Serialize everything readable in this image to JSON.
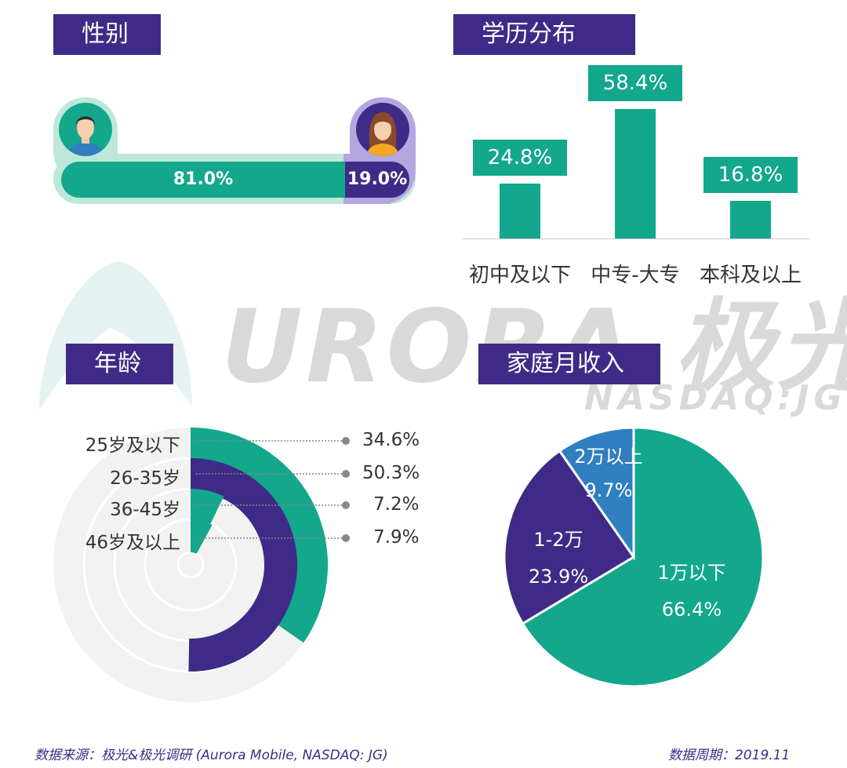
{
  "sections": {
    "gender_title": "性别",
    "education_title": "学历分布",
    "age_title": "年龄",
    "income_title": "家庭月收入"
  },
  "watermark": {
    "brand": "URORA 极光",
    "ticker": "NASDAQ:JG"
  },
  "gender": {
    "male_pct": "81.0%",
    "female_pct": "19.0%",
    "male_value": 81.0,
    "female_value": 19.0,
    "icons": [
      "male-avatar-icon",
      "female-avatar-icon"
    ]
  },
  "chart_data": [
    {
      "type": "bar",
      "title": "学历分布",
      "categories": [
        "初中及以下",
        "中专-大专",
        "本科及以上"
      ],
      "values": [
        24.8,
        58.4,
        16.8
      ],
      "labels": [
        "24.8%",
        "58.4%",
        "16.8%"
      ],
      "ylim": [
        0,
        60
      ]
    },
    {
      "type": "radial-bar",
      "title": "年龄",
      "categories": [
        "25岁及以下",
        "26-35岁",
        "36-45岁",
        "46岁及以上"
      ],
      "values": [
        34.6,
        50.3,
        7.2,
        7.9
      ],
      "labels": [
        "34.6%",
        "50.3%",
        "7.2%",
        "7.9%"
      ]
    },
    {
      "type": "pie",
      "title": "家庭月收入",
      "categories": [
        "1万以下",
        "1-2万",
        "2万以上"
      ],
      "values": [
        66.4,
        23.9,
        9.7
      ],
      "labels": [
        "66.4%",
        "23.9%",
        "9.7%"
      ]
    }
  ],
  "colors": {
    "teal": "#13a78c",
    "purple": "#3f2b87",
    "blue": "#2f7fc1",
    "light_teal": "#bde8d9",
    "light_purple": "#b4a7df",
    "track": "#f2f2f2"
  },
  "footer": {
    "source": "数据来源：极光&极光调研 (Aurora Mobile, NASDAQ: JG)",
    "period": "数据周期：2019.11"
  }
}
